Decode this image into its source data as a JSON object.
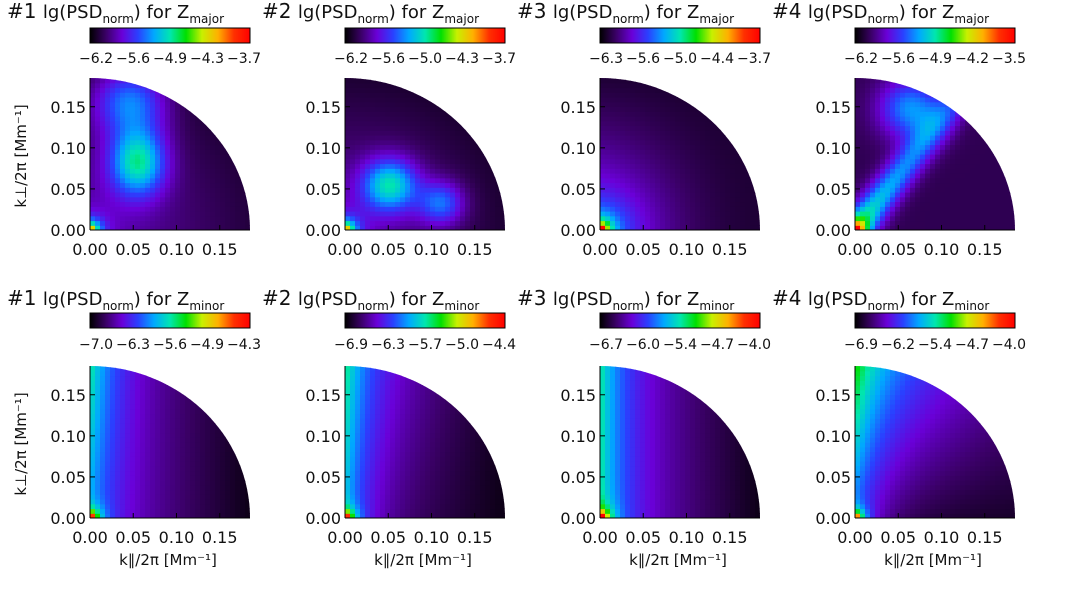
{
  "figure": {
    "rows": [
      {
        "component": "major",
        "ylabel": "k⊥/2π [Mm⁻¹]"
      },
      {
        "component": "minor",
        "ylabel": "k⊥/2π [Mm⁻¹]"
      }
    ],
    "xlabel": "k∥/2π [Mm⁻¹]"
  },
  "colormap": [
    "#000000",
    "#3a0066",
    "#6a00d8",
    "#2a40ff",
    "#00a8ff",
    "#00e6b0",
    "#00e000",
    "#c8f000",
    "#ffb000",
    "#ff3000",
    "#ff0000"
  ],
  "chart_data": [
    {
      "type": "heatmap",
      "panel": "#1",
      "component": "major",
      "title_parts": {
        "number": "#1",
        "lead": "lg(PSD",
        "sub1": "norm",
        "mid": ") for Z",
        "sub2": "major"
      },
      "colorbar_ticks": [
        "−6.2",
        "−5.6",
        "−4.9",
        "−4.3",
        "−3.7"
      ],
      "xlim": [
        0,
        0.185
      ],
      "ylim": [
        0,
        0.185
      ],
      "xticks": [
        "0.00",
        "0.05",
        "0.10",
        "0.15"
      ],
      "yticks": [
        "0.00",
        "0.05",
        "0.10",
        "0.15"
      ],
      "xlabel": "",
      "ylabel": "k⊥/2π [Mm⁻¹]"
    },
    {
      "type": "heatmap",
      "panel": "#2",
      "component": "major",
      "title_parts": {
        "number": "#2",
        "lead": "lg(PSD",
        "sub1": "norm",
        "mid": ") for Z",
        "sub2": "major"
      },
      "colorbar_ticks": [
        "−6.2",
        "−5.6",
        "−5.0",
        "−4.3",
        "−3.7"
      ],
      "xlim": [
        0,
        0.185
      ],
      "ylim": [
        0,
        0.185
      ],
      "xticks": [
        "0.00",
        "0.05",
        "0.10",
        "0.15"
      ],
      "yticks": [
        "0.00",
        "0.05",
        "0.10",
        "0.15"
      ],
      "xlabel": "",
      "ylabel": ""
    },
    {
      "type": "heatmap",
      "panel": "#3",
      "component": "major",
      "title_parts": {
        "number": "#3",
        "lead": "lg(PSD",
        "sub1": "norm",
        "mid": ") for Z",
        "sub2": "major"
      },
      "colorbar_ticks": [
        "−6.3",
        "−5.6",
        "−5.0",
        "−4.4",
        "−3.7"
      ],
      "xlim": [
        0,
        0.185
      ],
      "ylim": [
        0,
        0.185
      ],
      "xticks": [
        "0.00",
        "0.05",
        "0.10",
        "0.15"
      ],
      "yticks": [
        "0.00",
        "0.05",
        "0.10",
        "0.15"
      ],
      "xlabel": "",
      "ylabel": ""
    },
    {
      "type": "heatmap",
      "panel": "#4",
      "component": "major",
      "title_parts": {
        "number": "#4",
        "lead": "lg(PSD",
        "sub1": "norm",
        "mid": ") for Z",
        "sub2": "major"
      },
      "colorbar_ticks": [
        "−6.2",
        "−5.6",
        "−4.9",
        "−4.2",
        "−3.5"
      ],
      "xlim": [
        0,
        0.185
      ],
      "ylim": [
        0,
        0.185
      ],
      "xticks": [
        "0.00",
        "0.05",
        "0.10",
        "0.15"
      ],
      "yticks": [
        "0.00",
        "0.05",
        "0.10",
        "0.15"
      ],
      "xlabel": "",
      "ylabel": ""
    },
    {
      "type": "heatmap",
      "panel": "#1",
      "component": "minor",
      "title_parts": {
        "number": "#1",
        "lead": "lg(PSD",
        "sub1": "norm",
        "mid": ") for Z",
        "sub2": "minor"
      },
      "colorbar_ticks": [
        "−7.0",
        "−6.3",
        "−5.6",
        "−4.9",
        "−4.3"
      ],
      "xlim": [
        0,
        0.185
      ],
      "ylim": [
        0,
        0.185
      ],
      "xticks": [
        "0.00",
        "0.05",
        "0.10",
        "0.15"
      ],
      "yticks": [
        "0.00",
        "0.05",
        "0.10",
        "0.15"
      ],
      "xlabel": "k∥/2π [Mm⁻¹]",
      "ylabel": "k⊥/2π [Mm⁻¹]"
    },
    {
      "type": "heatmap",
      "panel": "#2",
      "component": "minor",
      "title_parts": {
        "number": "#2",
        "lead": "lg(PSD",
        "sub1": "norm",
        "mid": ") for Z",
        "sub2": "minor"
      },
      "colorbar_ticks": [
        "−6.9",
        "−6.3",
        "−5.7",
        "−5.0",
        "−4.4"
      ],
      "xlim": [
        0,
        0.185
      ],
      "ylim": [
        0,
        0.185
      ],
      "xticks": [
        "0.00",
        "0.05",
        "0.10",
        "0.15"
      ],
      "yticks": [
        "0.00",
        "0.05",
        "0.10",
        "0.15"
      ],
      "xlabel": "k∥/2π [Mm⁻¹]",
      "ylabel": ""
    },
    {
      "type": "heatmap",
      "panel": "#3",
      "component": "minor",
      "title_parts": {
        "number": "#3",
        "lead": "lg(PSD",
        "sub1": "norm",
        "mid": ") for Z",
        "sub2": "minor"
      },
      "colorbar_ticks": [
        "−6.7",
        "−6.0",
        "−5.4",
        "−4.7",
        "−4.0"
      ],
      "xlim": [
        0,
        0.185
      ],
      "ylim": [
        0,
        0.185
      ],
      "xticks": [
        "0.00",
        "0.05",
        "0.10",
        "0.15"
      ],
      "yticks": [
        "0.00",
        "0.05",
        "0.10",
        "0.15"
      ],
      "xlabel": "k∥/2π [Mm⁻¹]",
      "ylabel": ""
    },
    {
      "type": "heatmap",
      "panel": "#4",
      "component": "minor",
      "title_parts": {
        "number": "#4",
        "lead": "lg(PSD",
        "sub1": "norm",
        "mid": ") for Z",
        "sub2": "minor"
      },
      "colorbar_ticks": [
        "−6.9",
        "−6.2",
        "−5.4",
        "−4.7",
        "−4.0"
      ],
      "xlim": [
        0,
        0.185
      ],
      "ylim": [
        0,
        0.185
      ],
      "xticks": [
        "0.00",
        "0.05",
        "0.10",
        "0.15"
      ],
      "yticks": [
        "0.00",
        "0.05",
        "0.10",
        "0.15"
      ],
      "xlabel": "k∥/2π [Mm⁻¹]",
      "ylabel": ""
    }
  ]
}
